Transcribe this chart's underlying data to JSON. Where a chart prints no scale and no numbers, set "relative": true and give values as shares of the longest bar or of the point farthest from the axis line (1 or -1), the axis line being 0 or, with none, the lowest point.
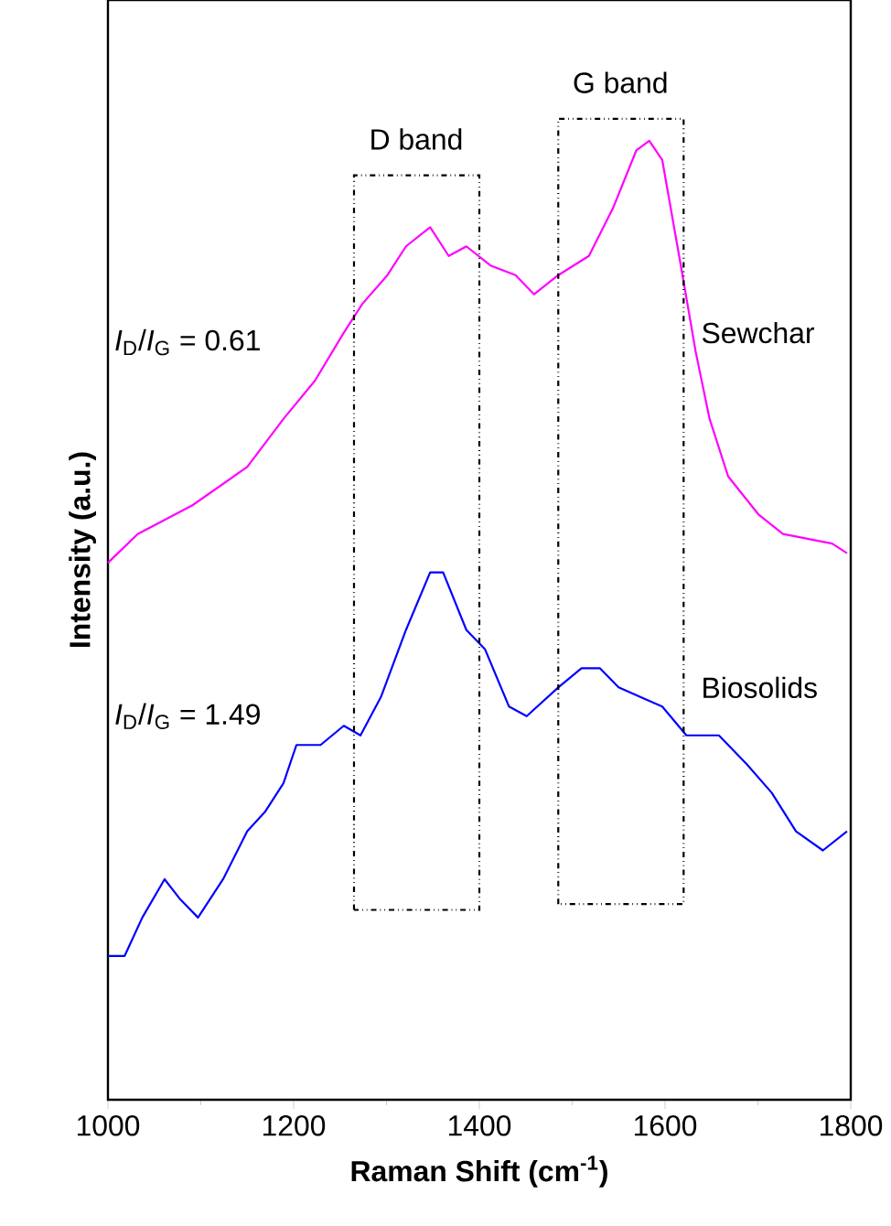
{
  "chart_data": {
    "type": "line",
    "relative": true,
    "xlabel": "Raman Shift (cm$^{-1}$)",
    "ylabel": "Intensity (a.u.)",
    "xlim": [
      1000,
      1800
    ],
    "xticks": [
      1000,
      1200,
      1400,
      1600,
      1800
    ],
    "grid": false,
    "marker": "none",
    "line_style": "solid",
    "annotations": [
      "*I*$_{D}$/*I*$_{G}$ = 0.61",
      "*I*$_{D}$/*I*$_{G}$ = 1.49",
      "D band",
      "G band"
    ],
    "series": [
      {
        "name": "Sewchar",
        "color": "#ff00ff",
        "x": [
          1000,
          1032,
          1091,
          1150,
          1189,
          1223,
          1254,
          1274,
          1301,
          1321,
          1347,
          1367,
          1386,
          1412,
          1439,
          1459,
          1485,
          1518,
          1544,
          1569,
          1583,
          1597,
          1617,
          1633,
          1648,
          1668,
          1701,
          1727,
          1780,
          1796
        ],
        "values": [
          0.56,
          0.59,
          0.62,
          0.66,
          0.71,
          0.75,
          0.8,
          0.83,
          0.86,
          0.89,
          0.91,
          0.88,
          0.89,
          0.87,
          0.86,
          0.84,
          0.86,
          0.88,
          0.93,
          0.99,
          1.0,
          0.98,
          0.87,
          0.78,
          0.71,
          0.65,
          0.61,
          0.59,
          0.58,
          0.57
        ]
      },
      {
        "name": "Biosolids",
        "color": "#0000ff",
        "x": [
          1000,
          1018,
          1037,
          1061,
          1077,
          1097,
          1124,
          1150,
          1169,
          1189,
          1203,
          1229,
          1254,
          1272,
          1294,
          1321,
          1347,
          1361,
          1386,
          1406,
          1432,
          1451,
          1485,
          1510,
          1530,
          1550,
          1597,
          1623,
          1658,
          1688,
          1715,
          1741,
          1770,
          1796
        ],
        "values": [
          0.15,
          0.15,
          0.19,
          0.23,
          0.21,
          0.19,
          0.23,
          0.28,
          0.3,
          0.33,
          0.37,
          0.37,
          0.39,
          0.38,
          0.42,
          0.49,
          0.55,
          0.55,
          0.49,
          0.47,
          0.41,
          0.4,
          0.43,
          0.45,
          0.45,
          0.43,
          0.41,
          0.38,
          0.38,
          0.35,
          0.32,
          0.28,
          0.26,
          0.28
        ]
      }
    ]
  }
}
